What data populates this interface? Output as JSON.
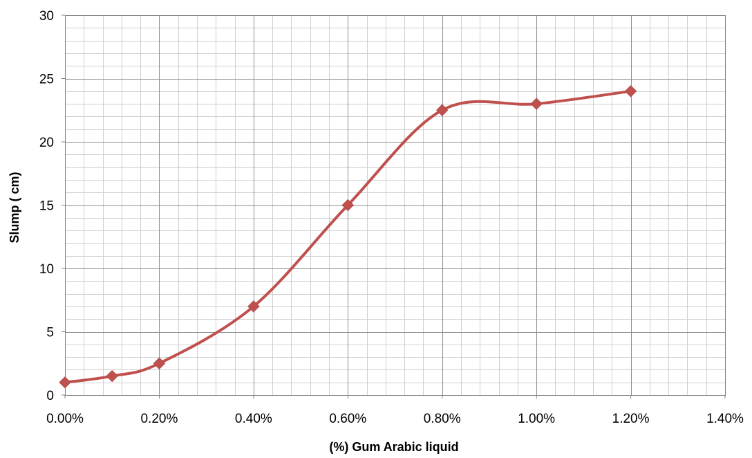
{
  "chart_data": {
    "type": "line",
    "title": "",
    "xlabel": "(%) Gum Arabic liquid",
    "ylabel": "Slump ( cm)",
    "xlim": [
      0,
      1.4
    ],
    "ylim": [
      0,
      30
    ],
    "x_ticks": [
      0,
      0.2,
      0.4,
      0.6,
      0.8,
      1.0,
      1.2,
      1.4
    ],
    "x_tick_labels": [
      "0.00%",
      "0.20%",
      "0.40%",
      "0.60%",
      "0.80%",
      "1.00%",
      "1.20%",
      "1.40%"
    ],
    "y_ticks": [
      0,
      5,
      10,
      15,
      20,
      25,
      30
    ],
    "y_tick_labels": [
      "0",
      "5",
      "10",
      "15",
      "20",
      "25",
      "30"
    ],
    "grid": true,
    "minor_grid": true,
    "legend": "none",
    "line_color": "#c0504d",
    "marker": "diamond",
    "smooth": true,
    "series": [
      {
        "x": [
          0,
          0.1,
          0.2,
          0.4,
          0.6,
          0.8,
          1.0,
          1.2
        ],
        "y": [
          1,
          1.5,
          2.5,
          7,
          15,
          22.5,
          23,
          24
        ]
      }
    ]
  }
}
